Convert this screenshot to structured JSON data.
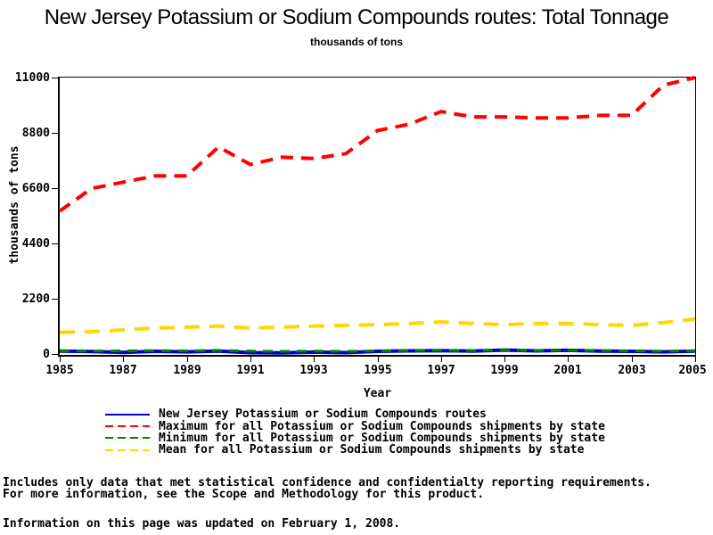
{
  "footnotes": {
    "line1": "Includes only data that met statistical confidence and confidentialty reporting requirements.",
    "line2": "For more information, see the Scope and Methodology for this product.",
    "line3": "Information on this page was updated on February 1, 2008."
  },
  "chart_data": {
    "type": "line",
    "title": "New Jersey Potassium or Sodium Compounds routes: Total Tonnage",
    "subtitle": "thousands of tons",
    "xlabel": "Year",
    "ylabel": "thousands of tons",
    "xlim": [
      1985,
      2005
    ],
    "ylim": [
      0,
      11000
    ],
    "grid": false,
    "legend_position": "bottom",
    "x": [
      1985,
      1986,
      1987,
      1988,
      1989,
      1990,
      1991,
      1992,
      1993,
      1994,
      1995,
      1996,
      1997,
      1998,
      1999,
      2000,
      2001,
      2002,
      2003,
      2004,
      2005
    ],
    "x_ticks": [
      "1985",
      "1987",
      "1989",
      "1991",
      "1993",
      "1995",
      "1997",
      "1999",
      "2001",
      "2003",
      "2005"
    ],
    "y_ticks": [
      "11000",
      "8800",
      "6600",
      "4400",
      "2200",
      "0"
    ],
    "series": [
      {
        "id": "nj-routes",
        "name": "New Jersey Potassium or Sodium Compounds routes",
        "color": "#0000cc",
        "line_style": "solid",
        "values": [
          150,
          130,
          100,
          140,
          120,
          150,
          90,
          80,
          110,
          90,
          140,
          160,
          170,
          150,
          190,
          160,
          180,
          150,
          140,
          120,
          150
        ]
      },
      {
        "id": "maximum",
        "name": "Maximum for all Potassium or Sodium Compounds shipments by state",
        "color": "#ff0000",
        "line_style": "dashed",
        "values": [
          5700,
          6600,
          6850,
          7100,
          7100,
          8250,
          7550,
          7840,
          7790,
          7980,
          8900,
          9150,
          9650,
          9440,
          9440,
          9400,
          9400,
          9500,
          9500,
          10700,
          11000
        ]
      },
      {
        "id": "minimum",
        "name": "Minimum for all Potassium or Sodium Compounds shipments by state",
        "color": "#008000",
        "line_style": "dashed",
        "values": [
          160,
          150,
          160,
          170,
          160,
          180,
          150,
          140,
          150,
          140,
          160,
          170,
          180,
          170,
          190,
          170,
          180,
          170,
          160,
          150,
          160
        ]
      },
      {
        "id": "mean",
        "name": "Mean for all Potassium or Sodium Compounds shipments by state",
        "color": "#ffd700",
        "line_style": "dashed",
        "values": [
          890,
          920,
          990,
          1060,
          1100,
          1140,
          1060,
          1100,
          1140,
          1170,
          1200,
          1240,
          1310,
          1240,
          1200,
          1240,
          1240,
          1200,
          1170,
          1280,
          1420
        ]
      }
    ]
  }
}
